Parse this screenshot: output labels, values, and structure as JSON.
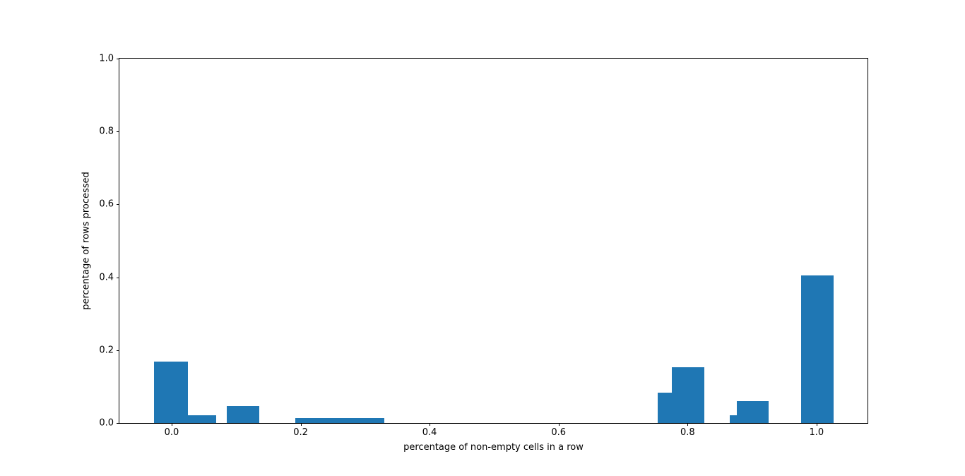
{
  "figure": {
    "background_color": "#ffffff",
    "spine_color": "#000000",
    "text_color": "#000000"
  },
  "chart_data": {
    "type": "bar",
    "title": "",
    "xlabel": "percentage of non-empty cells in a row",
    "ylabel": "percentage of rows processed",
    "xlim": [
      -0.081,
      1.079
    ],
    "ylim": [
      0.0,
      1.0
    ],
    "grid": false,
    "legend": null,
    "bar_color": "#1f77b4",
    "x_ticks": [
      0.0,
      0.2,
      0.4,
      0.6,
      0.8,
      1.0
    ],
    "x_tick_labels": [
      "0.0",
      "0.2",
      "0.4",
      "0.6",
      "0.8",
      "1.0"
    ],
    "y_ticks": [
      0.0,
      0.2,
      0.4,
      0.6,
      0.8,
      1.0
    ],
    "y_tick_labels": [
      "0.0",
      "0.2",
      "0.4",
      "0.6",
      "0.8",
      "1.0"
    ],
    "bars": [
      {
        "x_start": -0.027,
        "x_end": 0.025,
        "height": 0.168
      },
      {
        "x_start": 0.025,
        "x_end": 0.069,
        "height": 0.022
      },
      {
        "x_start": 0.086,
        "x_end": 0.136,
        "height": 0.047
      },
      {
        "x_start": 0.192,
        "x_end": 0.33,
        "height": 0.013
      },
      {
        "x_start": 0.754,
        "x_end": 0.776,
        "height": 0.084
      },
      {
        "x_start": 0.776,
        "x_end": 0.826,
        "height": 0.154
      },
      {
        "x_start": 0.865,
        "x_end": 0.876,
        "height": 0.022
      },
      {
        "x_start": 0.876,
        "x_end": 0.926,
        "height": 0.061
      },
      {
        "x_start": 0.976,
        "x_end": 1.026,
        "height": 0.405
      }
    ]
  }
}
